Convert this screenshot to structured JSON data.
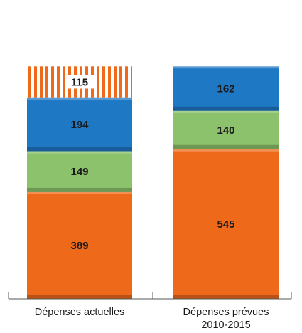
{
  "chart_data": {
    "type": "bar",
    "stacked": true,
    "categories": [
      "Dépenses actuelles",
      "Dépenses prévues\n2010-2015"
    ],
    "series": [
      {
        "color": "#ee6a1a",
        "values": [
          389,
          545
        ]
      },
      {
        "color": "#8cc26b",
        "values": [
          149,
          140
        ]
      },
      {
        "color": "#1f78c4",
        "values": [
          194,
          162
        ]
      },
      {
        "color": "#ee6a1a",
        "pattern": "stripes",
        "values": [
          115,
          null
        ]
      }
    ],
    "title": "",
    "xlabel": "",
    "ylabel": "",
    "ylim": [
      0,
      1050
    ],
    "grid": false,
    "legend": "none"
  }
}
